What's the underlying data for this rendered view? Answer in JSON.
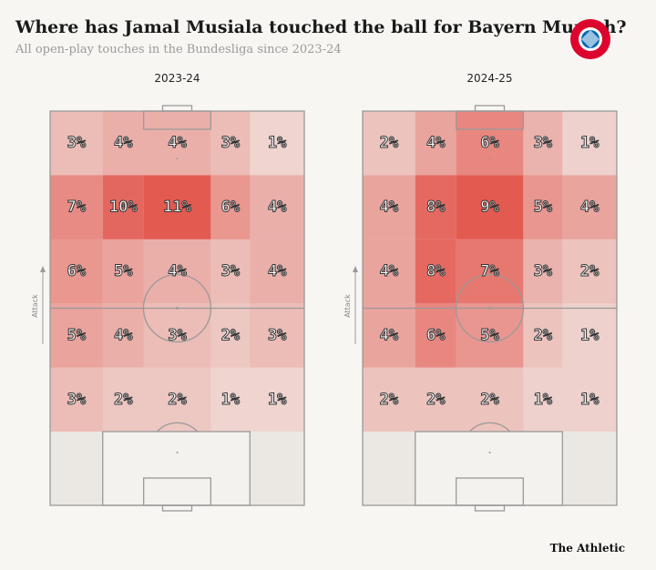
{
  "title": "Where has Jamal Musiala touched the ball for Bayern Munich?",
  "subtitle": "All open-play touches in the Bundesliga since 2023-24",
  "footer": "The Athletic",
  "chart_data": [
    {
      "type": "heatmap",
      "title": "2023-24",
      "axis_label": "Attack",
      "color": "#e0352b",
      "values": [
        [
          3,
          4,
          4,
          3,
          1
        ],
        [
          7,
          10,
          11,
          6,
          4
        ],
        [
          6,
          5,
          4,
          3,
          4
        ],
        [
          5,
          4,
          3,
          2,
          3
        ],
        [
          3,
          2,
          2,
          1,
          1
        ]
      ],
      "value_labels": [
        [
          "3%",
          "4%",
          "4%",
          "3%",
          "1%"
        ],
        [
          "7%",
          "10%",
          "11%",
          "6%",
          "4%"
        ],
        [
          "6%",
          "5%",
          "4%",
          "3%",
          "4%"
        ],
        [
          "5%",
          "4%",
          "3%",
          "2%",
          "3%"
        ],
        [
          "3%",
          "2%",
          "2%",
          "1%",
          "1%"
        ]
      ]
    },
    {
      "type": "heatmap",
      "title": "2024-25",
      "axis_label": "Attack",
      "color": "#e0352b",
      "values": [
        [
          2,
          4,
          6,
          3,
          1
        ],
        [
          4,
          8,
          9,
          5,
          4
        ],
        [
          4,
          8,
          7,
          3,
          2
        ],
        [
          4,
          6,
          5,
          2,
          1
        ],
        [
          2,
          2,
          2,
          1,
          1
        ]
      ],
      "value_labels": [
        [
          "2%",
          "4%",
          "6%",
          "3%",
          "1%"
        ],
        [
          "4%",
          "8%",
          "9%",
          "5%",
          "4%"
        ],
        [
          "4%",
          "8%",
          "7%",
          "3%",
          "2%"
        ],
        [
          "4%",
          "6%",
          "5%",
          "2%",
          "1%"
        ],
        [
          "2%",
          "2%",
          "2%",
          "1%",
          "1%"
        ]
      ]
    }
  ]
}
